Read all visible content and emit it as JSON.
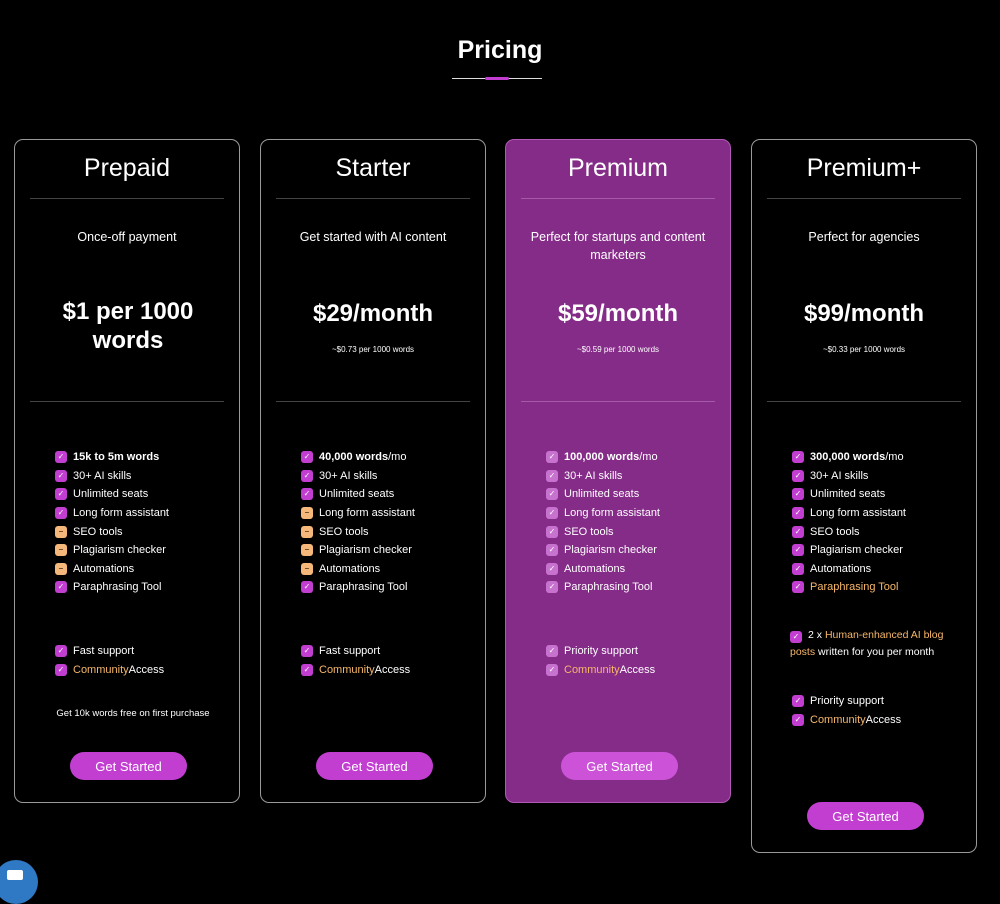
{
  "page": {
    "title": "Pricing"
  },
  "plans": [
    {
      "name": "Prepaid",
      "description": "Once-off payment",
      "price": "$1 per 1000 words",
      "price_note": "",
      "features": [
        {
          "bold": "15k to 5m words",
          "rest": "",
          "included": true
        },
        {
          "bold": "",
          "rest": "30+ AI skills",
          "included": true
        },
        {
          "bold": "",
          "rest": "Unlimited seats",
          "included": true
        },
        {
          "bold": "",
          "rest": "Long form assistant",
          "included": true
        },
        {
          "bold": "",
          "rest": "SEO tools",
          "included": false
        },
        {
          "bold": "",
          "rest": "Plagiarism checker",
          "included": false
        },
        {
          "bold": "",
          "rest": "Automations",
          "included": false
        },
        {
          "bold": "",
          "rest": "Paraphrasing Tool",
          "included": true
        }
      ],
      "support": "Fast support",
      "community_a": "Community",
      "community_b": " Access",
      "extra": "Get 10k words free on first purchase",
      "button": "Get Started"
    },
    {
      "name": "Starter",
      "description": "Get started with AI content",
      "price": "$29/month",
      "price_note": "~$0.73 per 1000 words",
      "features": [
        {
          "bold": "40,000 words",
          "rest": "/mo",
          "included": true
        },
        {
          "bold": "",
          "rest": "30+ AI skills",
          "included": true
        },
        {
          "bold": "",
          "rest": "Unlimited seats",
          "included": true
        },
        {
          "bold": "",
          "rest": "Long form assistant",
          "included": false
        },
        {
          "bold": "",
          "rest": "SEO tools",
          "included": false
        },
        {
          "bold": "",
          "rest": "Plagiarism checker",
          "included": false
        },
        {
          "bold": "",
          "rest": "Automations",
          "included": false
        },
        {
          "bold": "",
          "rest": "Paraphrasing Tool",
          "included": true
        }
      ],
      "support": "Fast support",
      "community_a": "Community",
      "community_b": " Access",
      "button": "Get Started"
    },
    {
      "name": "Premium",
      "description": "Perfect for startups and content marketers",
      "price": "$59/month",
      "price_note": "~$0.59 per 1000 words",
      "features": [
        {
          "bold": "100,000 words",
          "rest": "/mo",
          "included": true
        },
        {
          "bold": "",
          "rest": "30+ AI skills",
          "included": true
        },
        {
          "bold": "",
          "rest": "Unlimited seats",
          "included": true
        },
        {
          "bold": "",
          "rest": "Long form assistant",
          "included": true
        },
        {
          "bold": "",
          "rest": "SEO tools",
          "included": true
        },
        {
          "bold": "",
          "rest": "Plagiarism checker",
          "included": true
        },
        {
          "bold": "",
          "rest": "Automations",
          "included": true
        },
        {
          "bold": "",
          "rest": "Paraphrasing Tool",
          "included": true
        }
      ],
      "support": "Priority support",
      "community_a": "Community",
      "community_b": " Access",
      "button": "Get Started"
    },
    {
      "name": "Premium+",
      "description": "Perfect for agencies",
      "price": "$99/month",
      "price_note": "~$0.33 per 1000 words",
      "features": [
        {
          "bold": "300,000 words",
          "rest": "/mo",
          "included": true
        },
        {
          "bold": "",
          "rest": "30+ AI skills",
          "included": true
        },
        {
          "bold": "",
          "rest": "Unlimited seats",
          "included": true
        },
        {
          "bold": "",
          "rest": "Long form assistant",
          "included": true
        },
        {
          "bold": "",
          "rest": "SEO tools",
          "included": true
        },
        {
          "bold": "",
          "rest": "Plagiarism checker",
          "included": true
        },
        {
          "bold": "",
          "rest": "Automations",
          "included": true
        },
        {
          "bold": "",
          "rest": "Paraphrasing Tool",
          "included": true,
          "highlight": true
        }
      ],
      "bonus_a": "2 x ",
      "bonus_b": "Human-enhanced AI blog posts",
      "bonus_c": " written for you per month",
      "support": "Priority support",
      "community_a": "Community",
      "community_b": " Access",
      "button": "Get Started"
    }
  ],
  "colors": {
    "accent": "#c13ed1",
    "highlight_card": "#852b88",
    "orange_text": "#f7b76a",
    "partial_icon": "#f5b77a"
  },
  "icons": {
    "included": "check-icon",
    "partial": "minus-icon",
    "chat": "chat-icon"
  }
}
